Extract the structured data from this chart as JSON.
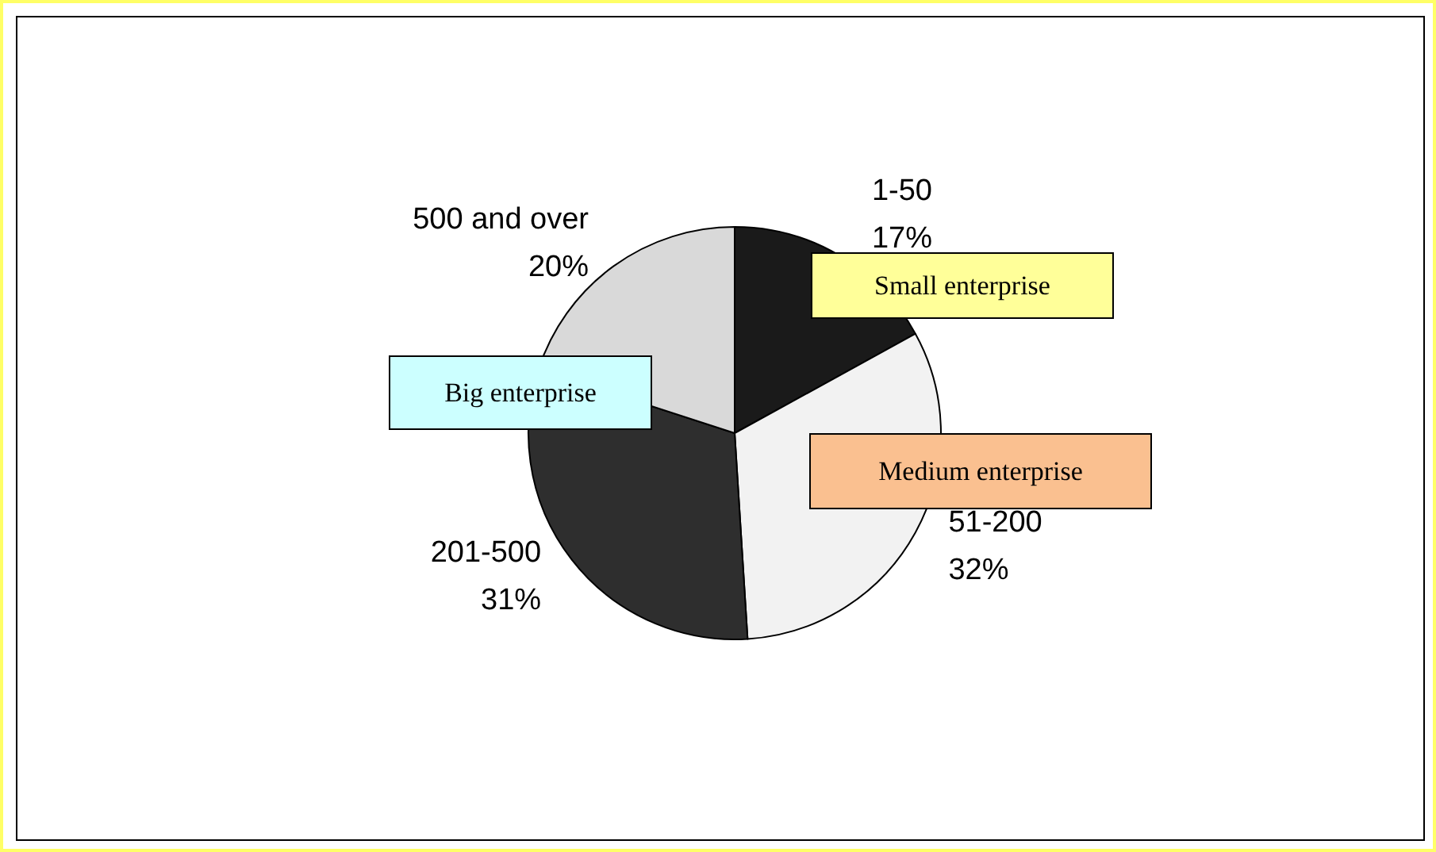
{
  "chart_data": {
    "type": "pie",
    "categories": [
      "1-50",
      "51-200",
      "201-500",
      "500 and over"
    ],
    "values": [
      17,
      32,
      31,
      20
    ],
    "value_labels": [
      "17%",
      "32%",
      "31%",
      "20%"
    ],
    "colors": [
      "#1a1a1a",
      "#f2f2f2",
      "#2e2e2e",
      "#d9d9d9"
    ],
    "annotations": [
      "Small enterprise",
      "Medium enterprise",
      "Big enterprise"
    ]
  }
}
